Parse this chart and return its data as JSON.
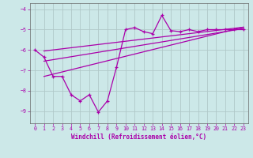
{
  "xlabel": "Windchill (Refroidissement éolien,°C)",
  "xlim": [
    -0.5,
    23.5
  ],
  "ylim": [
    -9.6,
    -3.7
  ],
  "yticks": [
    -9,
    -8,
    -7,
    -6,
    -5,
    -4
  ],
  "xticks": [
    0,
    1,
    2,
    3,
    4,
    5,
    6,
    7,
    8,
    9,
    10,
    11,
    12,
    13,
    14,
    15,
    16,
    17,
    18,
    19,
    20,
    21,
    22,
    23
  ],
  "bg_color": "#cce8e8",
  "grid_color": "#b0c8c8",
  "line_color": "#aa00aa",
  "scatter_x": [
    0,
    1,
    2,
    3,
    4,
    5,
    6,
    7,
    8,
    9,
    10,
    11,
    12,
    13,
    14,
    15,
    16,
    17,
    18,
    19,
    20,
    21,
    22,
    23
  ],
  "scatter_y": [
    -6.0,
    -6.35,
    -7.3,
    -7.3,
    -8.2,
    -8.5,
    -8.2,
    -9.05,
    -8.5,
    -6.85,
    -5.0,
    -4.9,
    -5.1,
    -5.2,
    -4.3,
    -5.05,
    -5.1,
    -5.0,
    -5.1,
    -5.0,
    -5.0,
    -5.0,
    -5.0,
    -5.0
  ],
  "line1_x": [
    1,
    23
  ],
  "line1_y": [
    -6.05,
    -4.88
  ],
  "line2_x": [
    1,
    23
  ],
  "line2_y": [
    -6.55,
    -4.95
  ],
  "line3_x": [
    1,
    23
  ],
  "line3_y": [
    -7.3,
    -4.88
  ]
}
